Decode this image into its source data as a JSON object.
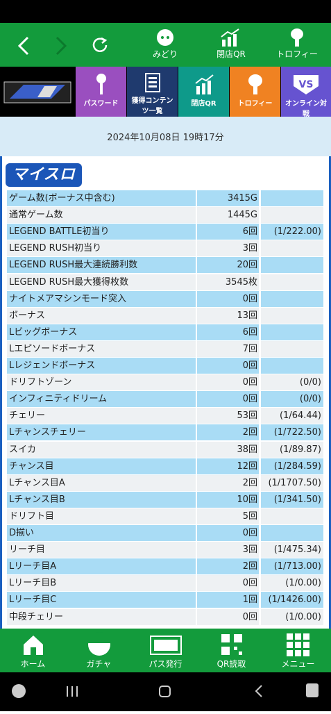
{
  "nav_items": [
    "みどり",
    "閉店QR",
    "トロフィー"
  ],
  "menu_buttons": [
    "パスワード",
    "獲得コンテンツ一覧",
    "閉店QR",
    "トロフィー",
    "オンライン対戦"
  ],
  "date": "2024年10月08日 19時17分",
  "section_title": "マイスロ",
  "table": {
    "rows": [
      {
        "label": "ゲーム数(ボーナス中含む)",
        "value": "3415G"
      },
      {
        "label": "通常ゲーム数",
        "value": "1445G"
      },
      {
        "label": "LEGEND BATTLE初当り",
        "value": "6回",
        "ratio": "(1/222.00)"
      },
      {
        "label": "LEGEND RUSH初当り",
        "value": "3回"
      },
      {
        "label": "LEGEND RUSH最大連続勝利数",
        "value": "20回"
      },
      {
        "label": "LEGEND RUSH最大獲得枚数",
        "value": "3545枚"
      },
      {
        "label": "ナイトメアマシンモード突入",
        "value": "0回"
      },
      {
        "label": "ボーナス",
        "value": "13回"
      },
      {
        "label": "Lビッグボーナス",
        "value": "6回"
      },
      {
        "label": "Lエピソードボーナス",
        "value": "7回"
      },
      {
        "label": "Lレジェンドボーナス",
        "value": "0回"
      },
      {
        "label": "ドリフトゾーン",
        "value": "0回",
        "ratio": "(0/0)"
      },
      {
        "label": "インフィニティドリーム",
        "value": "0回",
        "ratio": "(0/0)"
      },
      {
        "label": "チェリー",
        "value": "53回",
        "ratio": "(1/64.44)"
      },
      {
        "label": "Lチャンスチェリー",
        "value": "2回",
        "ratio": "(1/722.50)"
      },
      {
        "label": "スイカ",
        "value": "38回",
        "ratio": "(1/89.87)"
      },
      {
        "label": "チャンス目",
        "value": "12回",
        "ratio": "(1/284.59)"
      },
      {
        "label": "Lチャンス目A",
        "value": "2回",
        "ratio": "(1/1707.50)"
      },
      {
        "label": "Lチャンス目B",
        "value": "10回",
        "ratio": "(1/341.50)"
      },
      {
        "label": "ドリフト目",
        "value": "5回"
      },
      {
        "label": "D揃い",
        "value": "0回"
      },
      {
        "label": "リーチ目",
        "value": "3回",
        "ratio": "(1/475.34)"
      },
      {
        "label": "Lリーチ目A",
        "value": "2回",
        "ratio": "(1/713.00)"
      },
      {
        "label": "Lリーチ目B",
        "value": "0回",
        "ratio": "(1/0.00)"
      },
      {
        "label": "Lリーチ目C",
        "value": "1回",
        "ratio": "(1/1426.00)"
      },
      {
        "label": "中段チェリー",
        "value": "0回",
        "ratio": "(1/0.00)"
      }
    ]
  },
  "bottom_nav": [
    "ホーム",
    "ガチャ",
    "パス発行",
    "QR読取",
    "メニュー"
  ]
}
